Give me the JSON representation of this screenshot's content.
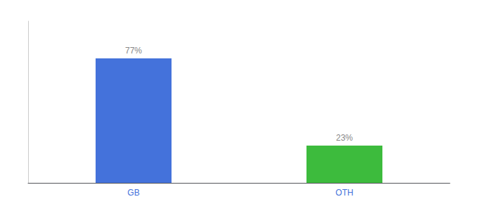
{
  "chart_data": {
    "type": "bar",
    "categories": [
      "GB",
      "OTH"
    ],
    "values": [
      77,
      23
    ],
    "value_labels": [
      "77%",
      "23%"
    ],
    "colors": [
      "#4472db",
      "#3dbb3d"
    ],
    "ylim": [
      0,
      100
    ],
    "grid": false,
    "data_labels": true,
    "tick_labels": "x"
  }
}
